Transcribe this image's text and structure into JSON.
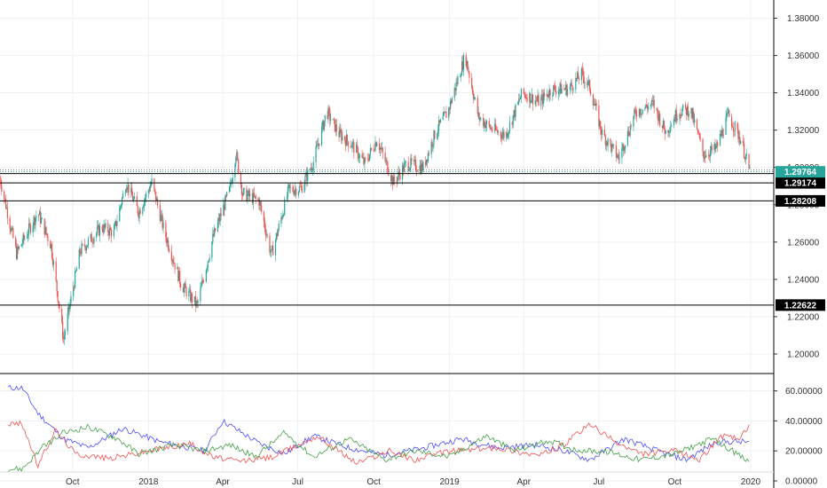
{
  "chart_data": [
    {
      "type": "candlestick",
      "ylim": [
        1.19,
        1.385
      ],
      "y_ticks": [
        "1.38000",
        "1.36000",
        "1.34000",
        "1.32000",
        "1.30000",
        "1.28000",
        "1.26000",
        "1.24000",
        "1.22000",
        "1.20000"
      ],
      "x_ticks": [
        "Oct",
        "2018",
        "Apr",
        "Jul",
        "Oct",
        "2019",
        "Apr",
        "Jul",
        "Oct",
        "2020"
      ],
      "grid": true,
      "colors": {
        "up": "#26a69a",
        "down": "#ef5350",
        "line": "#000000",
        "current_label_bg": "#26a69a"
      },
      "current_price": "1.29764",
      "levels": [
        {
          "label": "1.29672",
          "value": 1.29672
        },
        {
          "label": "1.29174",
          "value": 1.29174
        },
        {
          "label": "1.28208",
          "value": 1.28208
        },
        {
          "label": "1.22622",
          "value": 1.22622
        }
      ],
      "path_anchors": [
        [
          "2017-07-05",
          1.294
        ],
        [
          "2017-07-25",
          1.254
        ],
        [
          "2017-08-20",
          1.276
        ],
        [
          "2017-09-05",
          1.258
        ],
        [
          "2017-09-20",
          1.208
        ],
        [
          "2017-10-10",
          1.255
        ],
        [
          "2017-11-05",
          1.268
        ],
        [
          "2017-11-20",
          1.265
        ],
        [
          "2017-12-05",
          1.292
        ],
        [
          "2017-12-20",
          1.276
        ],
        [
          "2018-01-05",
          1.292
        ],
        [
          "2018-01-20",
          1.266
        ],
        [
          "2018-02-10",
          1.237
        ],
        [
          "2018-03-01",
          1.226
        ],
        [
          "2018-03-20",
          1.262
        ],
        [
          "2018-04-10",
          1.289
        ],
        [
          "2018-04-17",
          1.308
        ],
        [
          "2018-04-25",
          1.286
        ],
        [
          "2018-05-15",
          1.282
        ],
        [
          "2018-05-30",
          1.253
        ],
        [
          "2018-06-20",
          1.288
        ],
        [
          "2018-07-05",
          1.289
        ],
        [
          "2018-07-20",
          1.303
        ],
        [
          "2018-08-05",
          1.33
        ],
        [
          "2018-08-20",
          1.318
        ],
        [
          "2018-09-05",
          1.312
        ],
        [
          "2018-09-20",
          1.302
        ],
        [
          "2018-10-05",
          1.315
        ],
        [
          "2018-10-25",
          1.292
        ],
        [
          "2018-11-10",
          1.302
        ],
        [
          "2018-11-30",
          1.3
        ],
        [
          "2018-12-15",
          1.319
        ],
        [
          "2018-12-30",
          1.33
        ],
        [
          "2019-01-20",
          1.36
        ],
        [
          "2019-02-05",
          1.327
        ],
        [
          "2019-02-20",
          1.321
        ],
        [
          "2019-03-10",
          1.317
        ],
        [
          "2019-03-30",
          1.34
        ],
        [
          "2019-04-20",
          1.335
        ],
        [
          "2019-05-05",
          1.342
        ],
        [
          "2019-05-25",
          1.342
        ],
        [
          "2019-06-10",
          1.35
        ],
        [
          "2019-06-20",
          1.343
        ],
        [
          "2019-07-05",
          1.318
        ],
        [
          "2019-07-25",
          1.305
        ],
        [
          "2019-08-15",
          1.33
        ],
        [
          "2019-09-05",
          1.334
        ],
        [
          "2019-09-20",
          1.319
        ],
        [
          "2019-10-05",
          1.33
        ],
        [
          "2019-10-20",
          1.331
        ],
        [
          "2019-11-05",
          1.307
        ],
        [
          "2019-11-20",
          1.31
        ],
        [
          "2019-12-05",
          1.328
        ],
        [
          "2019-12-20",
          1.315
        ],
        [
          "2019-12-31",
          1.2976
        ]
      ]
    },
    {
      "type": "line",
      "ylim": [
        0,
        68
      ],
      "y_ticks": [
        "60.00000",
        "40.00000",
        "20.00000",
        "0.00000"
      ],
      "series_colors": [
        "#4d4dff",
        "#ef5350",
        "#43a047"
      ],
      "series_anchors": [
        [
          [
            "2017-08-01",
            62
          ],
          [
            "2017-08-20",
            45
          ],
          [
            "2017-09-20",
            28
          ],
          [
            "2017-10-20",
            22
          ],
          [
            "2017-12-01",
            35
          ],
          [
            "2018-01-15",
            26
          ],
          [
            "2018-03-10",
            20
          ],
          [
            "2018-04-01",
            40
          ],
          [
            "2018-05-15",
            25
          ],
          [
            "2018-06-15",
            18
          ],
          [
            "2018-07-20",
            30
          ],
          [
            "2018-09-01",
            22
          ],
          [
            "2018-10-15",
            17
          ],
          [
            "2018-12-01",
            22
          ],
          [
            "2019-01-15",
            28
          ],
          [
            "2019-03-01",
            22
          ],
          [
            "2019-04-15",
            24
          ],
          [
            "2019-05-20",
            20
          ],
          [
            "2019-06-20",
            14
          ],
          [
            "2019-08-01",
            28
          ],
          [
            "2019-09-15",
            19
          ],
          [
            "2019-10-15",
            14
          ],
          [
            "2019-11-20",
            26
          ],
          [
            "2019-12-31",
            26
          ]
        ],
        [
          [
            "2017-08-01",
            38
          ],
          [
            "2017-08-20",
            10
          ],
          [
            "2017-09-10",
            34
          ],
          [
            "2017-10-05",
            18
          ],
          [
            "2017-11-15",
            15
          ],
          [
            "2018-01-01",
            20
          ],
          [
            "2018-02-20",
            25
          ],
          [
            "2018-03-20",
            16
          ],
          [
            "2018-04-20",
            13
          ],
          [
            "2018-06-01",
            16
          ],
          [
            "2018-07-25",
            30
          ],
          [
            "2018-09-10",
            12
          ],
          [
            "2018-10-20",
            20
          ],
          [
            "2018-11-20",
            14
          ],
          [
            "2019-01-01",
            20
          ],
          [
            "2019-03-01",
            22
          ],
          [
            "2019-04-20",
            17
          ],
          [
            "2019-05-20",
            24
          ],
          [
            "2019-06-20",
            38
          ],
          [
            "2019-07-20",
            26
          ],
          [
            "2019-08-20",
            18
          ],
          [
            "2019-10-01",
            20
          ],
          [
            "2019-11-01",
            14
          ],
          [
            "2019-11-25",
            30
          ],
          [
            "2019-12-20",
            28
          ],
          [
            "2019-12-31",
            38
          ]
        ],
        [
          [
            "2017-08-01",
            8
          ],
          [
            "2017-08-25",
            22
          ],
          [
            "2017-09-20",
            32
          ],
          [
            "2017-10-20",
            36
          ],
          [
            "2017-11-25",
            28
          ],
          [
            "2017-12-20",
            18
          ],
          [
            "2018-02-01",
            24
          ],
          [
            "2018-03-10",
            20
          ],
          [
            "2018-04-10",
            24
          ],
          [
            "2018-05-10",
            16
          ],
          [
            "2018-06-15",
            32
          ],
          [
            "2018-07-20",
            16
          ],
          [
            "2018-09-01",
            28
          ],
          [
            "2018-10-15",
            14
          ],
          [
            "2018-11-20",
            20
          ],
          [
            "2019-01-01",
            16
          ],
          [
            "2019-02-15",
            30
          ],
          [
            "2019-03-20",
            20
          ],
          [
            "2019-05-01",
            27
          ],
          [
            "2019-06-01",
            21
          ],
          [
            "2019-07-15",
            19
          ],
          [
            "2019-08-20",
            14
          ],
          [
            "2019-10-01",
            18
          ],
          [
            "2019-11-15",
            28
          ],
          [
            "2019-12-10",
            20
          ],
          [
            "2019-12-31",
            12
          ]
        ]
      ]
    }
  ]
}
